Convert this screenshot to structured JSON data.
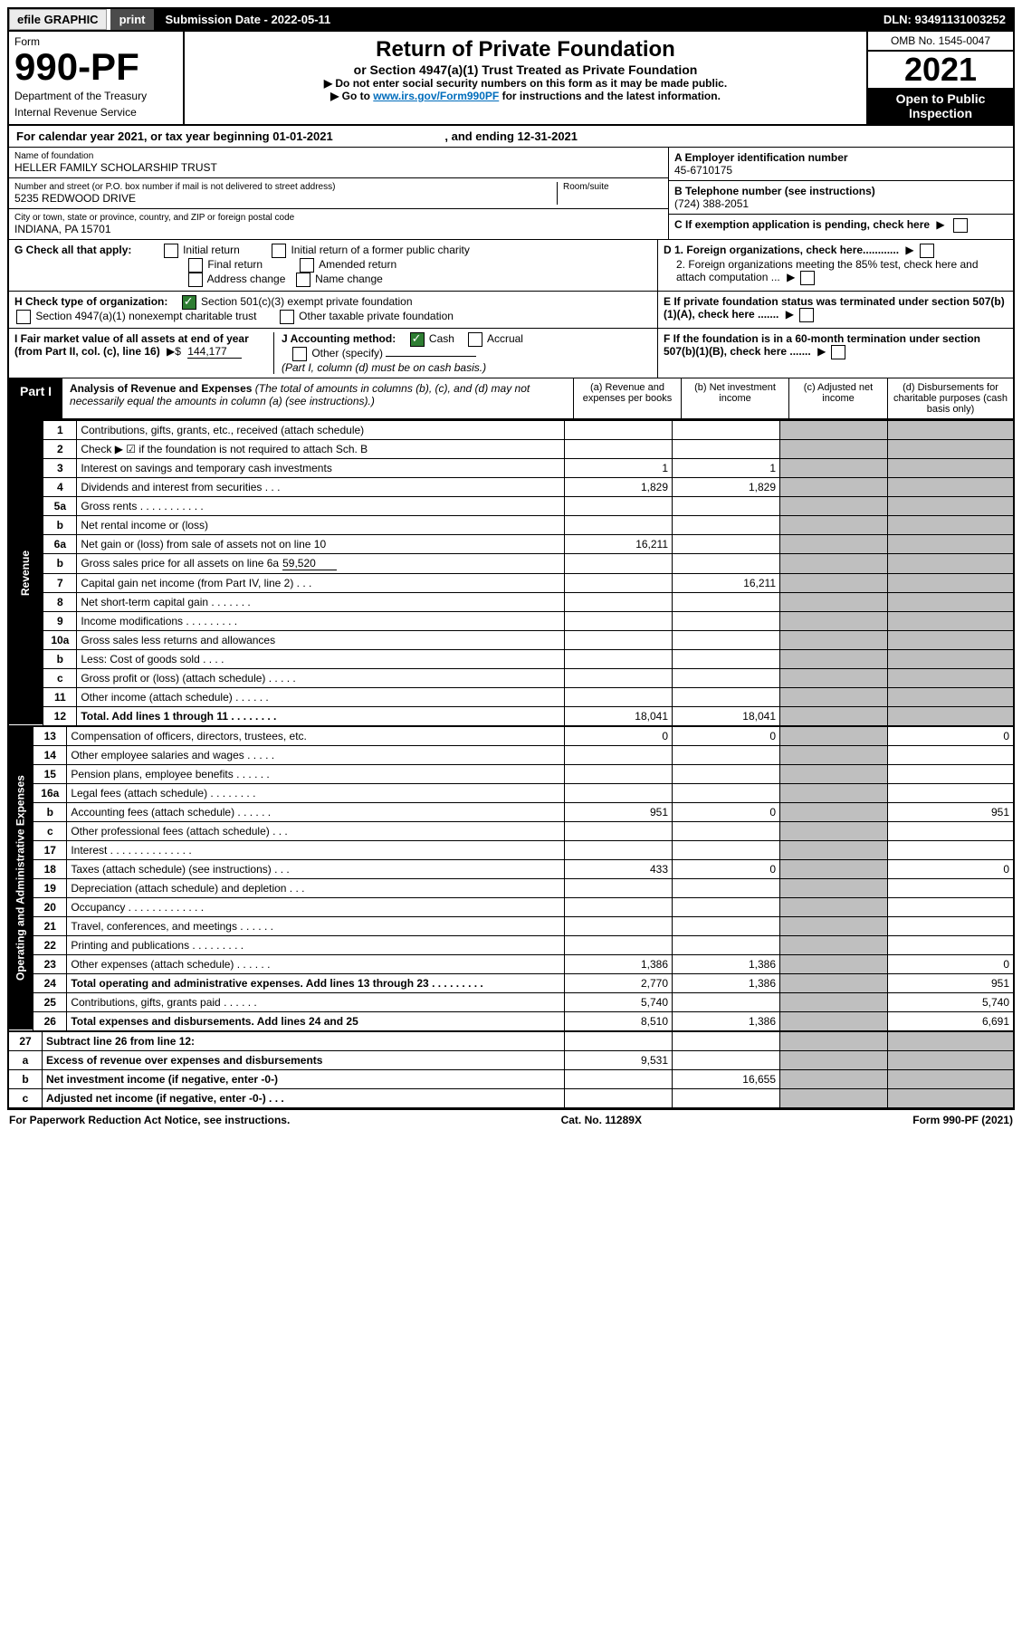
{
  "top": {
    "efile": "efile GRAPHIC",
    "print": "print",
    "submission_label": "Submission Date",
    "submission_date": "2022-05-11",
    "dln_label": "DLN:",
    "dln": "93491131003252",
    "omb": "OMB No. 1545-0047",
    "form": "Form",
    "form_no": "990-PF",
    "dept1": "Department of the Treasury",
    "dept2": "Internal Revenue Service",
    "title": "Return of Private Foundation",
    "subtitle": "or Section 4947(a)(1) Trust Treated as Private Foundation",
    "instr1": "▶ Do not enter social security numbers on this form as it may be made public.",
    "instr2a": "▶ Go to ",
    "instr2b": "www.irs.gov/Form990PF",
    "instr2c": " for instructions and the latest information.",
    "year": "2021",
    "open1": "Open to Public",
    "open2": "Inspection"
  },
  "cal": {
    "text": "For calendar year 2021, or tax year beginning 01-01-2021",
    "end": ", and ending 12-31-2021"
  },
  "info": {
    "name_label": "Name of foundation",
    "name": "HELLER FAMILY SCHOLARSHIP TRUST",
    "addr_label": "Number and street (or P.O. box number if mail is not delivered to street address)",
    "addr": "5235 REDWOOD DRIVE",
    "room_label": "Room/suite",
    "city_label": "City or town, state or province, country, and ZIP or foreign postal code",
    "city": "INDIANA, PA  15701",
    "ein_label": "A Employer identification number",
    "ein": "45-6710175",
    "phone_label": "B Telephone number (see instructions)",
    "phone": "(724) 388-2051",
    "c": "C If exemption application is pending, check here",
    "d1": "D 1. Foreign organizations, check here............",
    "d2": "2. Foreign organizations meeting the 85% test, check here and attach computation ...",
    "e": "E  If private foundation status was terminated under section 507(b)(1)(A), check here .......",
    "f": "F  If the foundation is in a 60-month termination under section 507(b)(1)(B), check here ......."
  },
  "g": {
    "label": "G Check all that apply:",
    "opts": [
      "Initial return",
      "Final return",
      "Address change",
      "Initial return of a former public charity",
      "Amended return",
      "Name change"
    ]
  },
  "h": {
    "label": "H Check type of organization:",
    "opt1": "Section 501(c)(3) exempt private foundation",
    "opt2": "Section 4947(a)(1) nonexempt charitable trust",
    "opt3": "Other taxable private foundation"
  },
  "i": {
    "label": "I Fair market value of all assets at end of year (from Part II, col. (c), line 16)",
    "val": "144,177"
  },
  "j": {
    "label": "J Accounting method:",
    "cash": "Cash",
    "accrual": "Accrual",
    "other": "Other (specify)",
    "note": "(Part I, column (d) must be on cash basis.)"
  },
  "part1": {
    "tag": "Part I",
    "title": "Analysis of Revenue and Expenses",
    "sub": " (The total of amounts in columns (b), (c), and (d) may not necessarily equal the amounts in column (a) (see instructions).)",
    "colA": "(a)  Revenue and expenses per books",
    "colB": "(b)  Net investment income",
    "colC": "(c)  Adjusted net income",
    "colD": "(d)  Disbursements for charitable purposes (cash basis only)"
  },
  "side": {
    "rev": "Revenue",
    "exp": "Operating and Administrative Expenses"
  },
  "rows": [
    {
      "n": "1",
      "lbl": "Contributions, gifts, grants, etc., received (attach schedule)"
    },
    {
      "n": "2",
      "lbl": "Check ▶ ☑ if the foundation is not required to attach Sch. B"
    },
    {
      "n": "3",
      "lbl": "Interest on savings and temporary cash investments",
      "a": "1",
      "b": "1"
    },
    {
      "n": "4",
      "lbl": "Dividends and interest from securities   .   .   .",
      "a": "1,829",
      "b": "1,829"
    },
    {
      "n": "5a",
      "lbl": "Gross rents   .   .   .   .   .   .   .   .   .   .   ."
    },
    {
      "n": "b",
      "lbl": "Net rental income or (loss)"
    },
    {
      "n": "6a",
      "lbl": "Net gain or (loss) from sale of assets not on line 10",
      "a": "16,211"
    },
    {
      "n": "b",
      "lbl": "Gross sales price for all assets on line 6a",
      "inline": "59,520"
    },
    {
      "n": "7",
      "lbl": "Capital gain net income (from Part IV, line 2)   .   .   .",
      "b": "16,211"
    },
    {
      "n": "8",
      "lbl": "Net short-term capital gain   .   .   .   .   .   .   ."
    },
    {
      "n": "9",
      "lbl": "Income modifications   .   .   .   .   .   .   .   .   ."
    },
    {
      "n": "10a",
      "lbl": "Gross sales less returns and allowances"
    },
    {
      "n": "b",
      "lbl": "Less: Cost of goods sold   .   .   .   ."
    },
    {
      "n": "c",
      "lbl": "Gross profit or (loss) (attach schedule)   .   .   .   .   ."
    },
    {
      "n": "11",
      "lbl": "Other income (attach schedule)   .   .   .   .   .   ."
    },
    {
      "n": "12",
      "lbl": "Total. Add lines 1 through 11   .   .   .   .   .   .   .   .",
      "a": "18,041",
      "b": "18,041",
      "bold": true
    }
  ],
  "exp_rows": [
    {
      "n": "13",
      "lbl": "Compensation of officers, directors, trustees, etc.",
      "a": "0",
      "b": "0",
      "d": "0"
    },
    {
      "n": "14",
      "lbl": "Other employee salaries and wages   .   .   .   .   ."
    },
    {
      "n": "15",
      "lbl": "Pension plans, employee benefits   .   .   .   .   .   ."
    },
    {
      "n": "16a",
      "lbl": "Legal fees (attach schedule)   .   .   .   .   .   .   .   ."
    },
    {
      "n": "b",
      "lbl": "Accounting fees (attach schedule)   .   .   .   .   .   .",
      "a": "951",
      "b": "0",
      "d": "951"
    },
    {
      "n": "c",
      "lbl": "Other professional fees (attach schedule)   .   .   ."
    },
    {
      "n": "17",
      "lbl": "Interest   .   .   .   .   .   .   .   .   .   .   .   .   .   ."
    },
    {
      "n": "18",
      "lbl": "Taxes (attach schedule) (see instructions)   .   .   .",
      "a": "433",
      "b": "0",
      "d": "0"
    },
    {
      "n": "19",
      "lbl": "Depreciation (attach schedule) and depletion   .   .   ."
    },
    {
      "n": "20",
      "lbl": "Occupancy   .   .   .   .   .   .   .   .   .   .   .   .   ."
    },
    {
      "n": "21",
      "lbl": "Travel, conferences, and meetings   .   .   .   .   .   ."
    },
    {
      "n": "22",
      "lbl": "Printing and publications   .   .   .   .   .   .   .   .   ."
    },
    {
      "n": "23",
      "lbl": "Other expenses (attach schedule)   .   .   .   .   .   .",
      "a": "1,386",
      "b": "1,386",
      "d": "0"
    },
    {
      "n": "24",
      "lbl": "Total operating and administrative expenses. Add lines 13 through 23   .   .   .   .   .   .   .   .   .",
      "a": "2,770",
      "b": "1,386",
      "d": "951",
      "bold": true
    },
    {
      "n": "25",
      "lbl": "Contributions, gifts, grants paid   .   .   .   .   .   .",
      "a": "5,740",
      "d": "5,740"
    },
    {
      "n": "26",
      "lbl": "Total expenses and disbursements. Add lines 24 and 25",
      "a": "8,510",
      "b": "1,386",
      "d": "6,691",
      "bold": true
    }
  ],
  "bottom_rows": [
    {
      "n": "27",
      "lbl": "Subtract line 26 from line 12:",
      "bold": true
    },
    {
      "n": "a",
      "lbl": "Excess of revenue over expenses and disbursements",
      "a": "9,531",
      "bold": true
    },
    {
      "n": "b",
      "lbl": "Net investment income (if negative, enter -0-)",
      "b": "16,655",
      "bold": true
    },
    {
      "n": "c",
      "lbl": "Adjusted net income (if negative, enter -0-)   .   .   .",
      "bold": true
    }
  ],
  "footer": {
    "left": "For Paperwork Reduction Act Notice, see instructions.",
    "mid": "Cat. No. 11289X",
    "right": "Form 990-PF (2021)"
  },
  "colors": {
    "black": "#000000",
    "white": "#ffffff",
    "link": "#006dbc",
    "shade": "#bfbfbf",
    "green": "#2e7d32",
    "btn_gray": "#ebebeb",
    "btn_dark": "#4b4b4b"
  }
}
